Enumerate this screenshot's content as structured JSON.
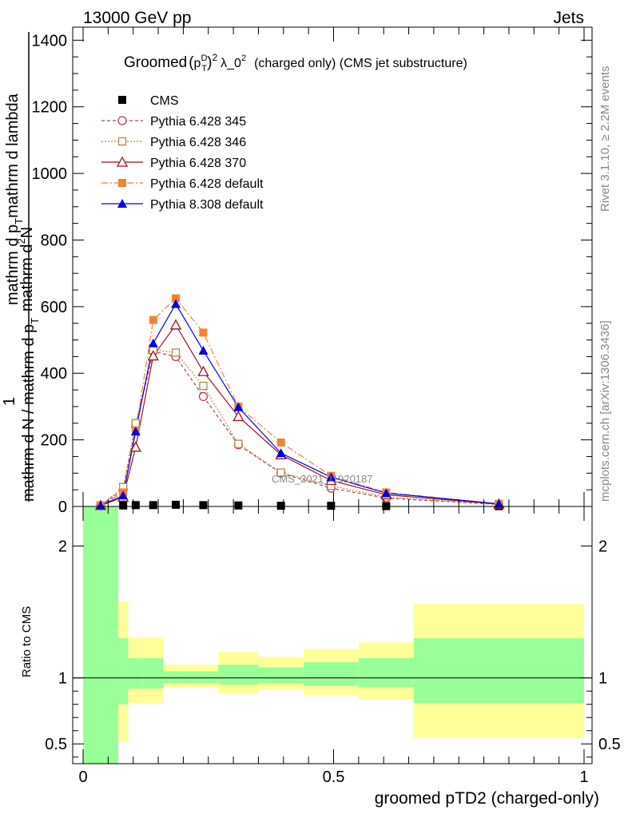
{
  "header": {
    "left": "13000 GeV pp",
    "right": "Jets"
  },
  "title": {
    "main": "Groomed",
    "pt": "p",
    "pt_sup": "D",
    "pt_sub": "T",
    "sq": "2",
    "lambda": "λ_0",
    "lambda_sup": "2",
    "rest": "(charged only) (CMS jet substructure)"
  },
  "side_labels": {
    "rivet": "Rivet 3.1.10, ≥ 2.2M events",
    "mcplots": "mcplots.cern.ch [arXiv:1306.3436]"
  },
  "watermark": "CMS_2021_I1920187",
  "main_ylabel": {
    "one": "1",
    "bottom": "mathrm d N / mathrm d p",
    "bottom_sub": "T",
    "top_a": "mathrm d",
    "top_a_sup": "2",
    "top_b": "N",
    "top_c": "mathrm d p",
    "top_c_sub": "T",
    "top_d": "mathrm d lambda"
  },
  "ratio_ylabel": "Ratio to CMS",
  "xlabel": "groomed pTD2 (charged-only)",
  "colors": {
    "cms": "#000000",
    "p345": "#b5404f",
    "p346": "#b08a46",
    "p370": "#96121f",
    "p6def": "#f58232",
    "p8def": "#0000e6",
    "band_inner": "#99ff99",
    "band_outer": "#ffff99"
  },
  "chart_data": {
    "type": "line",
    "xlabel": "groomed pTD2 (charged-only)",
    "main": {
      "xlim": [
        0,
        1
      ],
      "ylim": [
        0,
        1420
      ],
      "yticks": [
        0,
        200,
        400,
        600,
        800,
        1000,
        1200,
        1400
      ],
      "ytick_labels": [
        "0",
        "200",
        "400",
        "600",
        "800",
        "1000",
        "1200",
        "1400"
      ]
    },
    "ratio": {
      "ylim": [
        0.35,
        2.3
      ],
      "yticks": [
        0.5,
        1,
        2
      ],
      "ytick_labels": [
        "0.5",
        "1",
        "2"
      ]
    },
    "xticks": [
      0,
      0.5,
      1
    ],
    "xtick_labels": [
      "0",
      "0.5",
      "1"
    ],
    "bin_edges": [
      0,
      0.07,
      0.09,
      0.12,
      0.16,
      0.21,
      0.27,
      0.35,
      0.44,
      0.55,
      0.66,
      1.0
    ],
    "x_centers": [
      0.035,
      0.08,
      0.105,
      0.14,
      0.185,
      0.24,
      0.31,
      0.395,
      0.495,
      0.605,
      0.83
    ],
    "series": [
      {
        "name": "CMS",
        "key": "cms",
        "marker": "square-filled",
        "dash": "",
        "values": [
          2,
          3,
          4,
          4,
          5,
          4,
          3,
          2,
          2,
          1,
          1
        ]
      },
      {
        "name": "Pythia 6.428 345",
        "key": "p345",
        "marker": "circle-open",
        "dash": "4,3",
        "values": [
          3,
          50,
          240,
          465,
          450,
          330,
          185,
          100,
          55,
          25,
          6
        ]
      },
      {
        "name": "Pythia 6.428 346",
        "key": "p346",
        "marker": "square-open",
        "dash": "2,2",
        "values": [
          3,
          58,
          250,
          470,
          462,
          362,
          188,
          102,
          62,
          28,
          7
        ]
      },
      {
        "name": "Pythia 6.428 370",
        "key": "p370",
        "marker": "triangle-open",
        "dash": "",
        "values": [
          3,
          28,
          178,
          452,
          545,
          405,
          270,
          155,
          78,
          35,
          7
        ]
      },
      {
        "name": "Pythia 6.428 default",
        "key": "p6def",
        "marker": "square-filled",
        "dash": "8,3,2,3",
        "values": [
          3,
          42,
          228,
          560,
          625,
          522,
          300,
          192,
          92,
          42,
          8
        ]
      },
      {
        "name": "Pythia 8.308 default",
        "key": "p8def",
        "marker": "triangle-filled",
        "dash": "",
        "values": [
          3,
          33,
          225,
          490,
          608,
          468,
          298,
          160,
          88,
          40,
          8
        ]
      }
    ],
    "ratio_bands": {
      "inner_low": [
        0.35,
        0.8,
        0.92,
        0.92,
        0.96,
        0.96,
        0.95,
        0.96,
        0.94,
        0.93,
        0.81
      ],
      "inner_high": [
        2.3,
        1.3,
        1.15,
        1.15,
        1.05,
        1.05,
        1.1,
        1.08,
        1.12,
        1.15,
        1.3
      ],
      "outer_low": [
        0.35,
        0.52,
        0.81,
        0.81,
        0.93,
        0.93,
        0.88,
        0.91,
        0.87,
        0.84,
        0.55
      ],
      "outer_high": [
        2.3,
        1.58,
        1.31,
        1.31,
        1.1,
        1.1,
        1.2,
        1.16,
        1.22,
        1.27,
        1.56
      ]
    }
  }
}
